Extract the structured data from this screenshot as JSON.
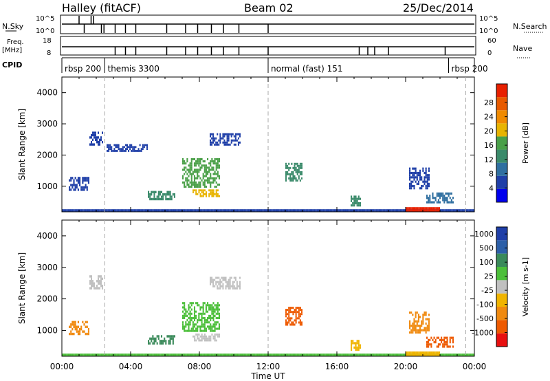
{
  "header": {
    "station": "Halley (fitACF)",
    "beam": "Beam 02",
    "date": "25/Dec/2014"
  },
  "top_panels": {
    "nsky_label": "N.Sky",
    "nsky_ticks": [
      "10^5",
      "10^0"
    ],
    "nsearch_label": "N.Search",
    "nsearch_ticks": [
      "10^5",
      "10^0"
    ],
    "freq_label": "Freq.",
    "freq_unit": "[MHz]",
    "freq_ticks": [
      "18",
      "8"
    ],
    "nave_label": "Nave",
    "nave_ticks": [
      "60",
      "0"
    ],
    "cpid_label": "CPID",
    "cpid_segments": [
      {
        "label": "rbsp 200",
        "start_h": 0.0,
        "end_h": 2.5
      },
      {
        "label": "themis 3300",
        "start_h": 2.5,
        "end_h": 12.0
      },
      {
        "label": "normal (fast) 151",
        "start_h": 12.0,
        "end_h": 22.5
      },
      {
        "label": "rbsp 200",
        "start_h": 22.5,
        "end_h": 24.0
      }
    ]
  },
  "colors": {
    "power_scale": [
      "#0000ee",
      "#1f3fa8",
      "#2f6fa0",
      "#3a8a6a",
      "#4aa048",
      "#e8b400",
      "#f08a00",
      "#e85a00",
      "#e82000"
    ],
    "velocity_scale": [
      "#e81010",
      "#ee5a00",
      "#f08a10",
      "#f0b400",
      "#c0c0c0",
      "#4cbf3a",
      "#3a8a5a",
      "#2c5fa8",
      "#1f3fa8"
    ]
  },
  "chart_data": [
    {
      "type": "heatmap",
      "name": "power",
      "ylabel": "Slant Range [km]",
      "yticks": [
        1000,
        2000,
        3000,
        4000
      ],
      "ylim": [
        180,
        4500
      ],
      "xlim": [
        0,
        24
      ],
      "colorbar_label": "Power [dB]",
      "colorbar_ticks": [
        "4",
        "8",
        "12",
        "16",
        "20",
        "24",
        "28"
      ],
      "regions": [
        {
          "t0": 0.0,
          "t1": 24.0,
          "r0": 180,
          "r1": 260,
          "v": 1
        },
        {
          "t0": 20.0,
          "t1": 22.0,
          "r0": 180,
          "r1": 330,
          "v": 8
        },
        {
          "t0": 1.6,
          "t1": 2.4,
          "r0": 2300,
          "r1": 2750,
          "v": 1
        },
        {
          "t0": 2.6,
          "t1": 5.0,
          "r0": 2100,
          "r1": 2350,
          "v": 1
        },
        {
          "t0": 0.4,
          "t1": 1.6,
          "r0": 850,
          "r1": 1300,
          "v": 1
        },
        {
          "t0": 5.0,
          "t1": 6.6,
          "r0": 550,
          "r1": 850,
          "v": 3
        },
        {
          "t0": 7.0,
          "t1": 9.2,
          "r0": 950,
          "r1": 1900,
          "v": 4
        },
        {
          "t0": 7.6,
          "t1": 9.2,
          "r0": 650,
          "r1": 900,
          "v": 5
        },
        {
          "t0": 8.6,
          "t1": 10.4,
          "r0": 2300,
          "r1": 2700,
          "v": 1
        },
        {
          "t0": 13.0,
          "t1": 14.0,
          "r0": 1150,
          "r1": 1750,
          "v": 3
        },
        {
          "t0": 16.8,
          "t1": 17.4,
          "r0": 350,
          "r1": 700,
          "v": 3
        },
        {
          "t0": 20.2,
          "t1": 21.4,
          "r0": 900,
          "r1": 1600,
          "v": 1
        },
        {
          "t0": 21.2,
          "t1": 22.8,
          "r0": 450,
          "r1": 800,
          "v": 2
        }
      ]
    },
    {
      "type": "heatmap",
      "name": "velocity",
      "ylabel": "Slant Range [km]",
      "yticks": [
        1000,
        2000,
        3000,
        4000
      ],
      "ylim": [
        180,
        4500
      ],
      "xlim": [
        0,
        24
      ],
      "xlabel": "Time UT",
      "xticks": [
        "00:00",
        "04:00",
        "08:00",
        "12:00",
        "16:00",
        "20:00",
        "00:00"
      ],
      "colorbar_label": "Velocity [m s-1]",
      "colorbar_ticks": [
        "-1000",
        "-500",
        "-100",
        "-25",
        "25",
        "100",
        "500",
        "1000"
      ],
      "regions": [
        {
          "t0": 0.0,
          "t1": 24.0,
          "r0": 180,
          "r1": 260,
          "v": 5
        },
        {
          "t0": 20.0,
          "t1": 22.0,
          "r0": 180,
          "r1": 330,
          "v": 3
        },
        {
          "t0": 0.4,
          "t1": 1.6,
          "r0": 850,
          "r1": 1300,
          "v": 2
        },
        {
          "t0": 1.6,
          "t1": 2.4,
          "r0": 2300,
          "r1": 2750,
          "v": 4
        },
        {
          "t0": 5.0,
          "t1": 6.6,
          "r0": 550,
          "r1": 850,
          "v": 6
        },
        {
          "t0": 7.0,
          "t1": 9.2,
          "r0": 950,
          "r1": 1900,
          "v": 5
        },
        {
          "t0": 7.6,
          "t1": 9.2,
          "r0": 650,
          "r1": 900,
          "v": 4
        },
        {
          "t0": 8.6,
          "t1": 10.4,
          "r0": 2300,
          "r1": 2700,
          "v": 4
        },
        {
          "t0": 13.0,
          "t1": 14.0,
          "r0": 1150,
          "r1": 1750,
          "v": 1
        },
        {
          "t0": 16.8,
          "t1": 17.4,
          "r0": 350,
          "r1": 700,
          "v": 3
        },
        {
          "t0": 20.2,
          "t1": 21.4,
          "r0": 900,
          "r1": 1600,
          "v": 2
        },
        {
          "t0": 21.2,
          "t1": 22.8,
          "r0": 450,
          "r1": 800,
          "v": 1
        }
      ]
    }
  ]
}
